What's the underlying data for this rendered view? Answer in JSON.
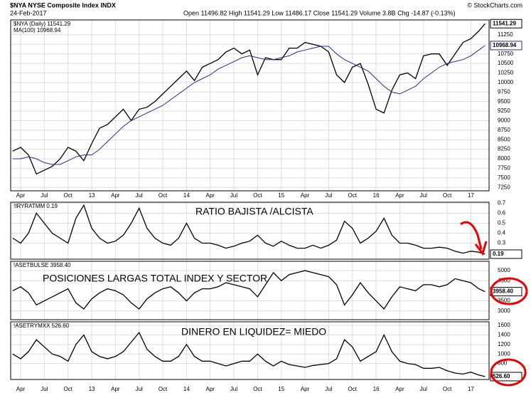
{
  "header": {
    "title": "$NYA NYSE Composite Index INDX",
    "date": "24-Feb-2017",
    "quote": "Open 11496.82 High 11541.29 Low 11486.17 Close 11541.29 Volume 3.8B Chg -14.87 (-0.13%)",
    "source": "© StockCharts.com"
  },
  "chart_data": [
    {
      "type": "line",
      "grid": true,
      "x": [
        2,
        3,
        4,
        5,
        6,
        7,
        8,
        9,
        10,
        11,
        12,
        13,
        14,
        15,
        16,
        17,
        18,
        19,
        20,
        21,
        22,
        23,
        24,
        25,
        26,
        27,
        28,
        29,
        30,
        31,
        32,
        33,
        34,
        35,
        36,
        37,
        38,
        39,
        40,
        41,
        42,
        43,
        44,
        45,
        46,
        47,
        48,
        49,
        50,
        51,
        52,
        53,
        54,
        55,
        56,
        57,
        58,
        59,
        60,
        61,
        61.8
      ],
      "xlim": [
        1.74,
        62.3
      ],
      "xticks": [
        {
          "value": 3,
          "label": "Apr"
        },
        {
          "value": 6,
          "label": "Jul"
        },
        {
          "value": 9,
          "label": "Oct"
        },
        {
          "value": 12,
          "label": "13"
        },
        {
          "value": 15,
          "label": "Apr"
        },
        {
          "value": 18,
          "label": "Jul"
        },
        {
          "value": 21,
          "label": "Oct"
        },
        {
          "value": 24,
          "label": "14"
        },
        {
          "value": 27,
          "label": "Apr"
        },
        {
          "value": 30,
          "label": "Jul"
        },
        {
          "value": 33,
          "label": "Oct"
        },
        {
          "value": 36,
          "label": "15"
        },
        {
          "value": 39,
          "label": "Apr"
        },
        {
          "value": 42,
          "label": "Jul"
        },
        {
          "value": 45,
          "label": "Oct"
        },
        {
          "value": 48,
          "label": "16"
        },
        {
          "value": 51,
          "label": "Apr"
        },
        {
          "value": 54,
          "label": "Jul"
        },
        {
          "value": 57,
          "label": "Oct"
        },
        {
          "value": 60,
          "label": "17"
        }
      ],
      "ylim": [
        7160,
        11640
      ],
      "yticks": [
        7250,
        7500,
        7750,
        8000,
        8250,
        8500,
        8750,
        9000,
        9250,
        9500,
        9750,
        10000,
        10250,
        10500,
        10750,
        11000,
        11250
      ],
      "series": [
        {
          "name": "$NYA (Daily) 11541.29",
          "color": "#000000",
          "values": [
            8200,
            8300,
            8100,
            7600,
            7700,
            7800,
            8000,
            8300,
            8200,
            7950,
            8400,
            8800,
            8900,
            9100,
            9300,
            9000,
            9300,
            9350,
            9500,
            9700,
            9900,
            10100,
            10300,
            10050,
            10400,
            10500,
            10600,
            10800,
            10900,
            10750,
            10850,
            10200,
            10650,
            10600,
            10600,
            10900,
            10900,
            11050,
            11000,
            10950,
            10800,
            10200,
            10000,
            10400,
            10500,
            9950,
            9300,
            9200,
            9800,
            10200,
            10250,
            10100,
            10700,
            10750,
            10750,
            10450,
            10750,
            11050,
            11150,
            11350,
            11541.29
          ]
        },
        {
          "name": "MA(100) 10968.94",
          "color": "#1f2f8f",
          "values": [
            8000,
            8000,
            8050,
            8000,
            7900,
            7850,
            7850,
            7950,
            8050,
            8100,
            8100,
            8250,
            8450,
            8650,
            8850,
            9000,
            9100,
            9200,
            9300,
            9400,
            9550,
            9700,
            9850,
            10000,
            10100,
            10200,
            10350,
            10450,
            10550,
            10650,
            10700,
            10650,
            10600,
            10600,
            10650,
            10700,
            10800,
            10850,
            10900,
            10950,
            10950,
            10750,
            10600,
            10500,
            10400,
            10300,
            10100,
            9900,
            9750,
            9700,
            9800,
            9900,
            10100,
            10250,
            10400,
            10500,
            10550,
            10600,
            10700,
            10850,
            10968.94
          ]
        }
      ]
    },
    {
      "type": "line",
      "grid": true,
      "annotation": "RATIO BAJISTA /ALCISTA",
      "x": [
        2,
        3,
        4,
        5,
        6,
        7,
        8,
        9,
        10,
        11,
        12,
        13,
        14,
        15,
        16,
        17,
        18,
        19,
        20,
        21,
        22,
        23,
        24,
        25,
        26,
        27,
        28,
        29,
        30,
        31,
        32,
        33,
        34,
        35,
        36,
        37,
        38,
        39,
        40,
        41,
        42,
        43,
        44,
        45,
        46,
        47,
        48,
        49,
        50,
        51,
        52,
        53,
        54,
        55,
        56,
        57,
        58,
        59,
        60,
        61,
        61.8
      ],
      "xlim": [
        1.74,
        62.3
      ],
      "ylim": [
        0.14,
        0.71
      ],
      "yticks": [
        0.3,
        0.4,
        0.5,
        0.6,
        0.7
      ],
      "series": [
        {
          "name": "!IRYRATMM 0.19",
          "color": "#000000",
          "values": [
            0.35,
            0.3,
            0.4,
            0.6,
            0.5,
            0.4,
            0.35,
            0.3,
            0.55,
            0.68,
            0.45,
            0.35,
            0.3,
            0.32,
            0.38,
            0.5,
            0.65,
            0.45,
            0.35,
            0.3,
            0.28,
            0.35,
            0.5,
            0.35,
            0.3,
            0.3,
            0.28,
            0.25,
            0.27,
            0.3,
            0.32,
            0.38,
            0.3,
            0.27,
            0.32,
            0.28,
            0.25,
            0.25,
            0.28,
            0.25,
            0.28,
            0.33,
            0.52,
            0.45,
            0.3,
            0.35,
            0.42,
            0.55,
            0.38,
            0.3,
            0.3,
            0.28,
            0.25,
            0.25,
            0.26,
            0.25,
            0.22,
            0.2,
            0.22,
            0.21,
            0.19
          ]
        }
      ]
    },
    {
      "type": "line",
      "grid": true,
      "annotation": "POSICIONES LARGAS TOTAL INDEX Y SECTOR",
      "x": [
        2,
        3,
        4,
        5,
        6,
        7,
        8,
        9,
        10,
        11,
        12,
        13,
        14,
        15,
        16,
        17,
        18,
        19,
        20,
        21,
        22,
        23,
        24,
        25,
        26,
        27,
        28,
        29,
        30,
        31,
        32,
        33,
        34,
        35,
        36,
        37,
        38,
        39,
        40,
        41,
        42,
        43,
        44,
        45,
        46,
        47,
        48,
        49,
        50,
        51,
        52,
        53,
        54,
        55,
        56,
        57,
        58,
        59,
        60,
        61,
        61.8
      ],
      "xlim": [
        1.74,
        62.3
      ],
      "ylim": [
        2570,
        5460
      ],
      "yticks": [
        3000,
        3500,
        4500,
        5000
      ],
      "series": [
        {
          "name": "!ASETBULSE 3958.40",
          "color": "#000000",
          "values": [
            4000,
            4200,
            3900,
            3300,
            3500,
            3700,
            3900,
            4100,
            3400,
            3100,
            3600,
            3900,
            4100,
            4000,
            3800,
            3400,
            3100,
            3600,
            3900,
            4100,
            4200,
            3900,
            3500,
            3900,
            4100,
            4100,
            4200,
            4400,
            4300,
            4200,
            4100,
            3700,
            4300,
            4900,
            4500,
            4800,
            4900,
            5000,
            4900,
            4800,
            4700,
            4300,
            3300,
            3800,
            4400,
            3900,
            3500,
            3100,
            3700,
            4200,
            4100,
            4000,
            4300,
            4300,
            4200,
            4300,
            4600,
            4500,
            4400,
            4100,
            3958.4
          ],
          "value_labels": {
            "60": "3958.40"
          }
        }
      ]
    },
    {
      "type": "line",
      "grid": true,
      "annotation": "DINERO EN LIQUIDEZ= MIEDO",
      "x": [
        2,
        3,
        4,
        5,
        6,
        7,
        8,
        9,
        10,
        11,
        12,
        13,
        14,
        15,
        16,
        17,
        18,
        19,
        20,
        21,
        22,
        23,
        24,
        25,
        26,
        27,
        28,
        29,
        30,
        31,
        32,
        33,
        34,
        35,
        36,
        37,
        38,
        39,
        40,
        41,
        42,
        43,
        44,
        45,
        46,
        47,
        48,
        49,
        50,
        51,
        52,
        53,
        54,
        55,
        56,
        57,
        58,
        59,
        60,
        61,
        61.8
      ],
      "xlim": [
        1.74,
        62.3
      ],
      "xticks": [
        {
          "value": 3,
          "label": "Apr"
        },
        {
          "value": 6,
          "label": "Jul"
        },
        {
          "value": 9,
          "label": "Oct"
        },
        {
          "value": 12,
          "label": "13"
        },
        {
          "value": 15,
          "label": "Apr"
        },
        {
          "value": 18,
          "label": "Jul"
        },
        {
          "value": 21,
          "label": "Oct"
        },
        {
          "value": 24,
          "label": "14"
        },
        {
          "value": 27,
          "label": "Apr"
        },
        {
          "value": 30,
          "label": "Jul"
        },
        {
          "value": 33,
          "label": "Oct"
        },
        {
          "value": 36,
          "label": "15"
        },
        {
          "value": 39,
          "label": "Apr"
        },
        {
          "value": 42,
          "label": "Jul"
        },
        {
          "value": 45,
          "label": "Oct"
        },
        {
          "value": 48,
          "label": "16"
        },
        {
          "value": 51,
          "label": "Apr"
        },
        {
          "value": 54,
          "label": "Jul"
        },
        {
          "value": 57,
          "label": "Oct"
        },
        {
          "value": 60,
          "label": "17"
        }
      ],
      "ylim": [
        466,
        1675
      ],
      "yticks": [
        800,
        1000,
        1200,
        1400,
        1600
      ],
      "series": [
        {
          "name": "!ASETRYMXX 526.60",
          "color": "#000000",
          "values": [
            1000,
            900,
            1050,
            1300,
            1150,
            1000,
            950,
            850,
            1200,
            1400,
            1050,
            950,
            900,
            950,
            1050,
            1250,
            1450,
            1100,
            950,
            850,
            850,
            950,
            1200,
            950,
            850,
            850,
            800,
            750,
            800,
            850,
            850,
            1000,
            850,
            750,
            850,
            780,
            750,
            720,
            760,
            780,
            800,
            900,
            1300,
            1150,
            850,
            950,
            1050,
            1400,
            1050,
            850,
            800,
            780,
            700,
            700,
            720,
            650,
            600,
            580,
            620,
            560,
            526.6
          ],
          "value_labels": {
            "60": "526.60"
          }
        }
      ]
    }
  ]
}
